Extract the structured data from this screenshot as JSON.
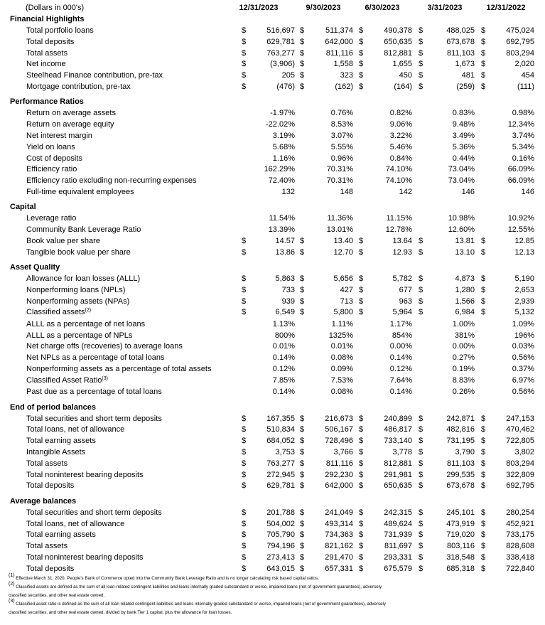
{
  "header": {
    "units": "(Dollars in 000's)",
    "columns": [
      "12/31/2023",
      "9/30/2023",
      "6/30/2023",
      "3/31/2023",
      "12/31/2022"
    ]
  },
  "sections": [
    {
      "title": "Financial Highlights",
      "rows": [
        {
          "label": "Total portfolio loans",
          "currency": "$",
          "cells": [
            "516,697",
            "511,374",
            "490,378",
            "488,025",
            "475,024"
          ]
        },
        {
          "label": "Total deposits",
          "currency": "$",
          "cells": [
            "629,781",
            "642,000",
            "650,635",
            "673,678",
            "692,795"
          ]
        },
        {
          "label": "Total assets",
          "currency": "$",
          "cells": [
            "763,277",
            "811,116",
            "812,881",
            "811,103",
            "803,294"
          ]
        },
        {
          "label": "Net income",
          "currency": "$",
          "cells": [
            "(3,906)",
            "1,558",
            "1,655",
            "1,673",
            "2,020"
          ]
        },
        {
          "label": "Steelhead Finance contribution, pre-tax",
          "currency": "$",
          "cells": [
            "205",
            "323",
            "450",
            "481",
            "454"
          ]
        },
        {
          "label": "Mortgage contribution, pre-tax",
          "currency": "$",
          "cells": [
            "(476)",
            "(162)",
            "(164)",
            "(259)",
            "(111)"
          ]
        }
      ]
    },
    {
      "title": "Performance Ratios",
      "rows": [
        {
          "label": "Return on average assets",
          "cells": [
            "-1.97%",
            "0.76%",
            "0.82%",
            "0.83%",
            "0.98%"
          ]
        },
        {
          "label": "Return on average equity",
          "cells": [
            "-22.02%",
            "8.53%",
            "9.06%",
            "9.48%",
            "12.34%"
          ]
        },
        {
          "label": "Net interest margin",
          "cells": [
            "3.19%",
            "3.07%",
            "3.22%",
            "3.49%",
            "3.74%"
          ]
        },
        {
          "label": "Yield on loans",
          "cells": [
            "5.68%",
            "5.55%",
            "5.46%",
            "5.36%",
            "5.34%"
          ]
        },
        {
          "label": "Cost of deposits",
          "cells": [
            "1.16%",
            "0.96%",
            "0.84%",
            "0.44%",
            "0.16%"
          ]
        },
        {
          "label": "Efficiency ratio",
          "cells": [
            "162.29%",
            "70.31%",
            "74.10%",
            "73.04%",
            "66.09%"
          ]
        },
        {
          "label": "Efficiency ratio excluding non-recurring expenses",
          "cells": [
            "72.40%",
            "70.31%",
            "74.10%",
            "73.04%",
            "66.09%"
          ]
        },
        {
          "label": "Full-time equivalent employees",
          "cells": [
            "132",
            "148",
            "142",
            "146",
            "146"
          ]
        }
      ]
    },
    {
      "title": "Capital",
      "rows": [
        {
          "label": "Leverage ratio",
          "cells": [
            "11.54%",
            "11.36%",
            "11.15%",
            "10.98%",
            "10.92%"
          ]
        },
        {
          "label": "Community Bank Leverage Ratio",
          "cells": [
            "13.39%",
            "13.01%",
            "12.78%",
            "12.60%",
            "12.55%"
          ]
        },
        {
          "label": "Book value per share",
          "currency": "$",
          "cells": [
            "14.57",
            "13.40",
            "13.64",
            "13.81",
            "12.85"
          ]
        },
        {
          "label": "Tangible book value per share",
          "currency": "$",
          "cells": [
            "13.86",
            "12.70",
            "12.93",
            "13.10",
            "12.13"
          ]
        }
      ]
    },
    {
      "title": "Asset Quality",
      "rows": [
        {
          "label": "Allowance for loan losses (ALLL)",
          "currency": "$",
          "cells": [
            "5,863",
            "5,656",
            "5,782",
            "4,873",
            "5,190"
          ]
        },
        {
          "label": "Nonperforming loans (NPLs)",
          "currency": "$",
          "cells": [
            "733",
            "427",
            "677",
            "1,280",
            "2,653"
          ]
        },
        {
          "label": "Nonperforming assets (NPAs)",
          "currency": "$",
          "cells": [
            "939",
            "713",
            "963",
            "1,566",
            "2,939"
          ]
        },
        {
          "label": "Classified assets",
          "note": "(2)",
          "currency": "$",
          "cells": [
            "6,549",
            "5,800",
            "5,964",
            "6,984",
            "5,132"
          ]
        },
        {
          "label": "ALLL as a percentage of net loans",
          "cells": [
            "1.13%",
            "1.11%",
            "1.17%",
            "1.00%",
            "1.09%"
          ]
        },
        {
          "label": "ALLL as a percentage of NPLs",
          "cells": [
            "800%",
            "1325%",
            "854%",
            "381%",
            "196%"
          ]
        },
        {
          "label": "Net charge offs (recoveries) to average loans",
          "cells": [
            "0.01%",
            "0.01%",
            "0.00%",
            "0.00%",
            "0.03%"
          ]
        },
        {
          "label": "Net NPLs as a percentage of total loans",
          "cells": [
            "0.14%",
            "0.08%",
            "0.14%",
            "0.27%",
            "0.56%"
          ]
        },
        {
          "label": "Nonperforming assets as a percentage of total assets",
          "cells": [
            "0.12%",
            "0.09%",
            "0.12%",
            "0.19%",
            "0.37%"
          ]
        },
        {
          "label": "Classified Asset Ratio",
          "note": "(3)",
          "cells": [
            "7.85%",
            "7.53%",
            "7.64%",
            "8.83%",
            "6.97%"
          ]
        },
        {
          "label": "Past due as a percentage of total loans",
          "cells": [
            "0.14%",
            "0.08%",
            "0.14%",
            "0.26%",
            "0.56%"
          ]
        }
      ]
    },
    {
      "title": "End of period balances",
      "rows": [
        {
          "label": "Total securities and short term deposits",
          "currency": "$",
          "cells": [
            "167,355",
            "216,673",
            "240,899",
            "242,871",
            "247,153"
          ]
        },
        {
          "label": "Total loans, net of allowance",
          "currency": "$",
          "cells": [
            "510,834",
            "506,167",
            "486,817",
            "482,816",
            "470,462"
          ]
        },
        {
          "label": "Total earning assets",
          "currency": "$",
          "cells": [
            "684,052",
            "728,496",
            "733,140",
            "731,195",
            "722,805"
          ]
        },
        {
          "label": "Intangible Assets",
          "currency": "$",
          "cells": [
            "3,753",
            "3,766",
            "3,778",
            "3,790",
            "3,802"
          ]
        },
        {
          "label": "Total assets",
          "currency": "$",
          "cells": [
            "763,277",
            "811,116",
            "812,881",
            "811,103",
            "803,294"
          ]
        },
        {
          "label": "Total noninterest bearing deposits",
          "currency": "$",
          "cells": [
            "272,945",
            "292,230",
            "291,981",
            "299,535",
            "322,809"
          ]
        },
        {
          "label": "Total deposits",
          "currency": "$",
          "cells": [
            "629,781",
            "642,000",
            "650,635",
            "673,678",
            "692,795"
          ]
        }
      ]
    },
    {
      "title": "Average balances",
      "rows": [
        {
          "label": "Total securities and short term deposits",
          "currency": "$",
          "cells": [
            "201,788",
            "241,049",
            "242,315",
            "245,101",
            "280,254"
          ]
        },
        {
          "label": "Total loans, net of allowance",
          "currency": "$",
          "cells": [
            "504,002",
            "493,314",
            "489,624",
            "473,919",
            "452,921"
          ]
        },
        {
          "label": "Total earning assets",
          "currency": "$",
          "cells": [
            "705,790",
            "734,363",
            "731,939",
            "719,020",
            "733,175"
          ]
        },
        {
          "label": "Total assets",
          "currency": "$",
          "cells": [
            "794,196",
            "821,162",
            "811,697",
            "803,116",
            "828,608"
          ]
        },
        {
          "label": "Total noninterest bearing deposits",
          "currency": "$",
          "cells": [
            "273,413",
            "291,470",
            "293,331",
            "318,548",
            "338,418"
          ]
        },
        {
          "label": "Total deposits",
          "currency": "$",
          "cells": [
            "643,015",
            "657,331",
            "675,579",
            "685,318",
            "722,840"
          ]
        }
      ]
    }
  ],
  "footnotes": [
    {
      "mark": "(1)",
      "text": "Effective March 31, 2020, People's Bank of Commerce opted into the Community Bank Leverage Ratio and is no longer calculating risk based capital ratios."
    },
    {
      "mark": "(2)",
      "text": "Classified assets are defined as the sum of all loan-related contingent liabilities and loans internally graded substandard or worse, impaired loans (net of government guarantees), adversely classified securities, and other real estate owned."
    },
    {
      "mark": "(3)",
      "text": "Classified asset ratio is defined as the sum of all loan related contingent liabilities and loans internally graded substandard or worse, impaired loans (net of government guarantees), adversely classified securities, and other real estate owned, divided by bank Tier 1 capital, plus the allowance for loan losses."
    }
  ]
}
